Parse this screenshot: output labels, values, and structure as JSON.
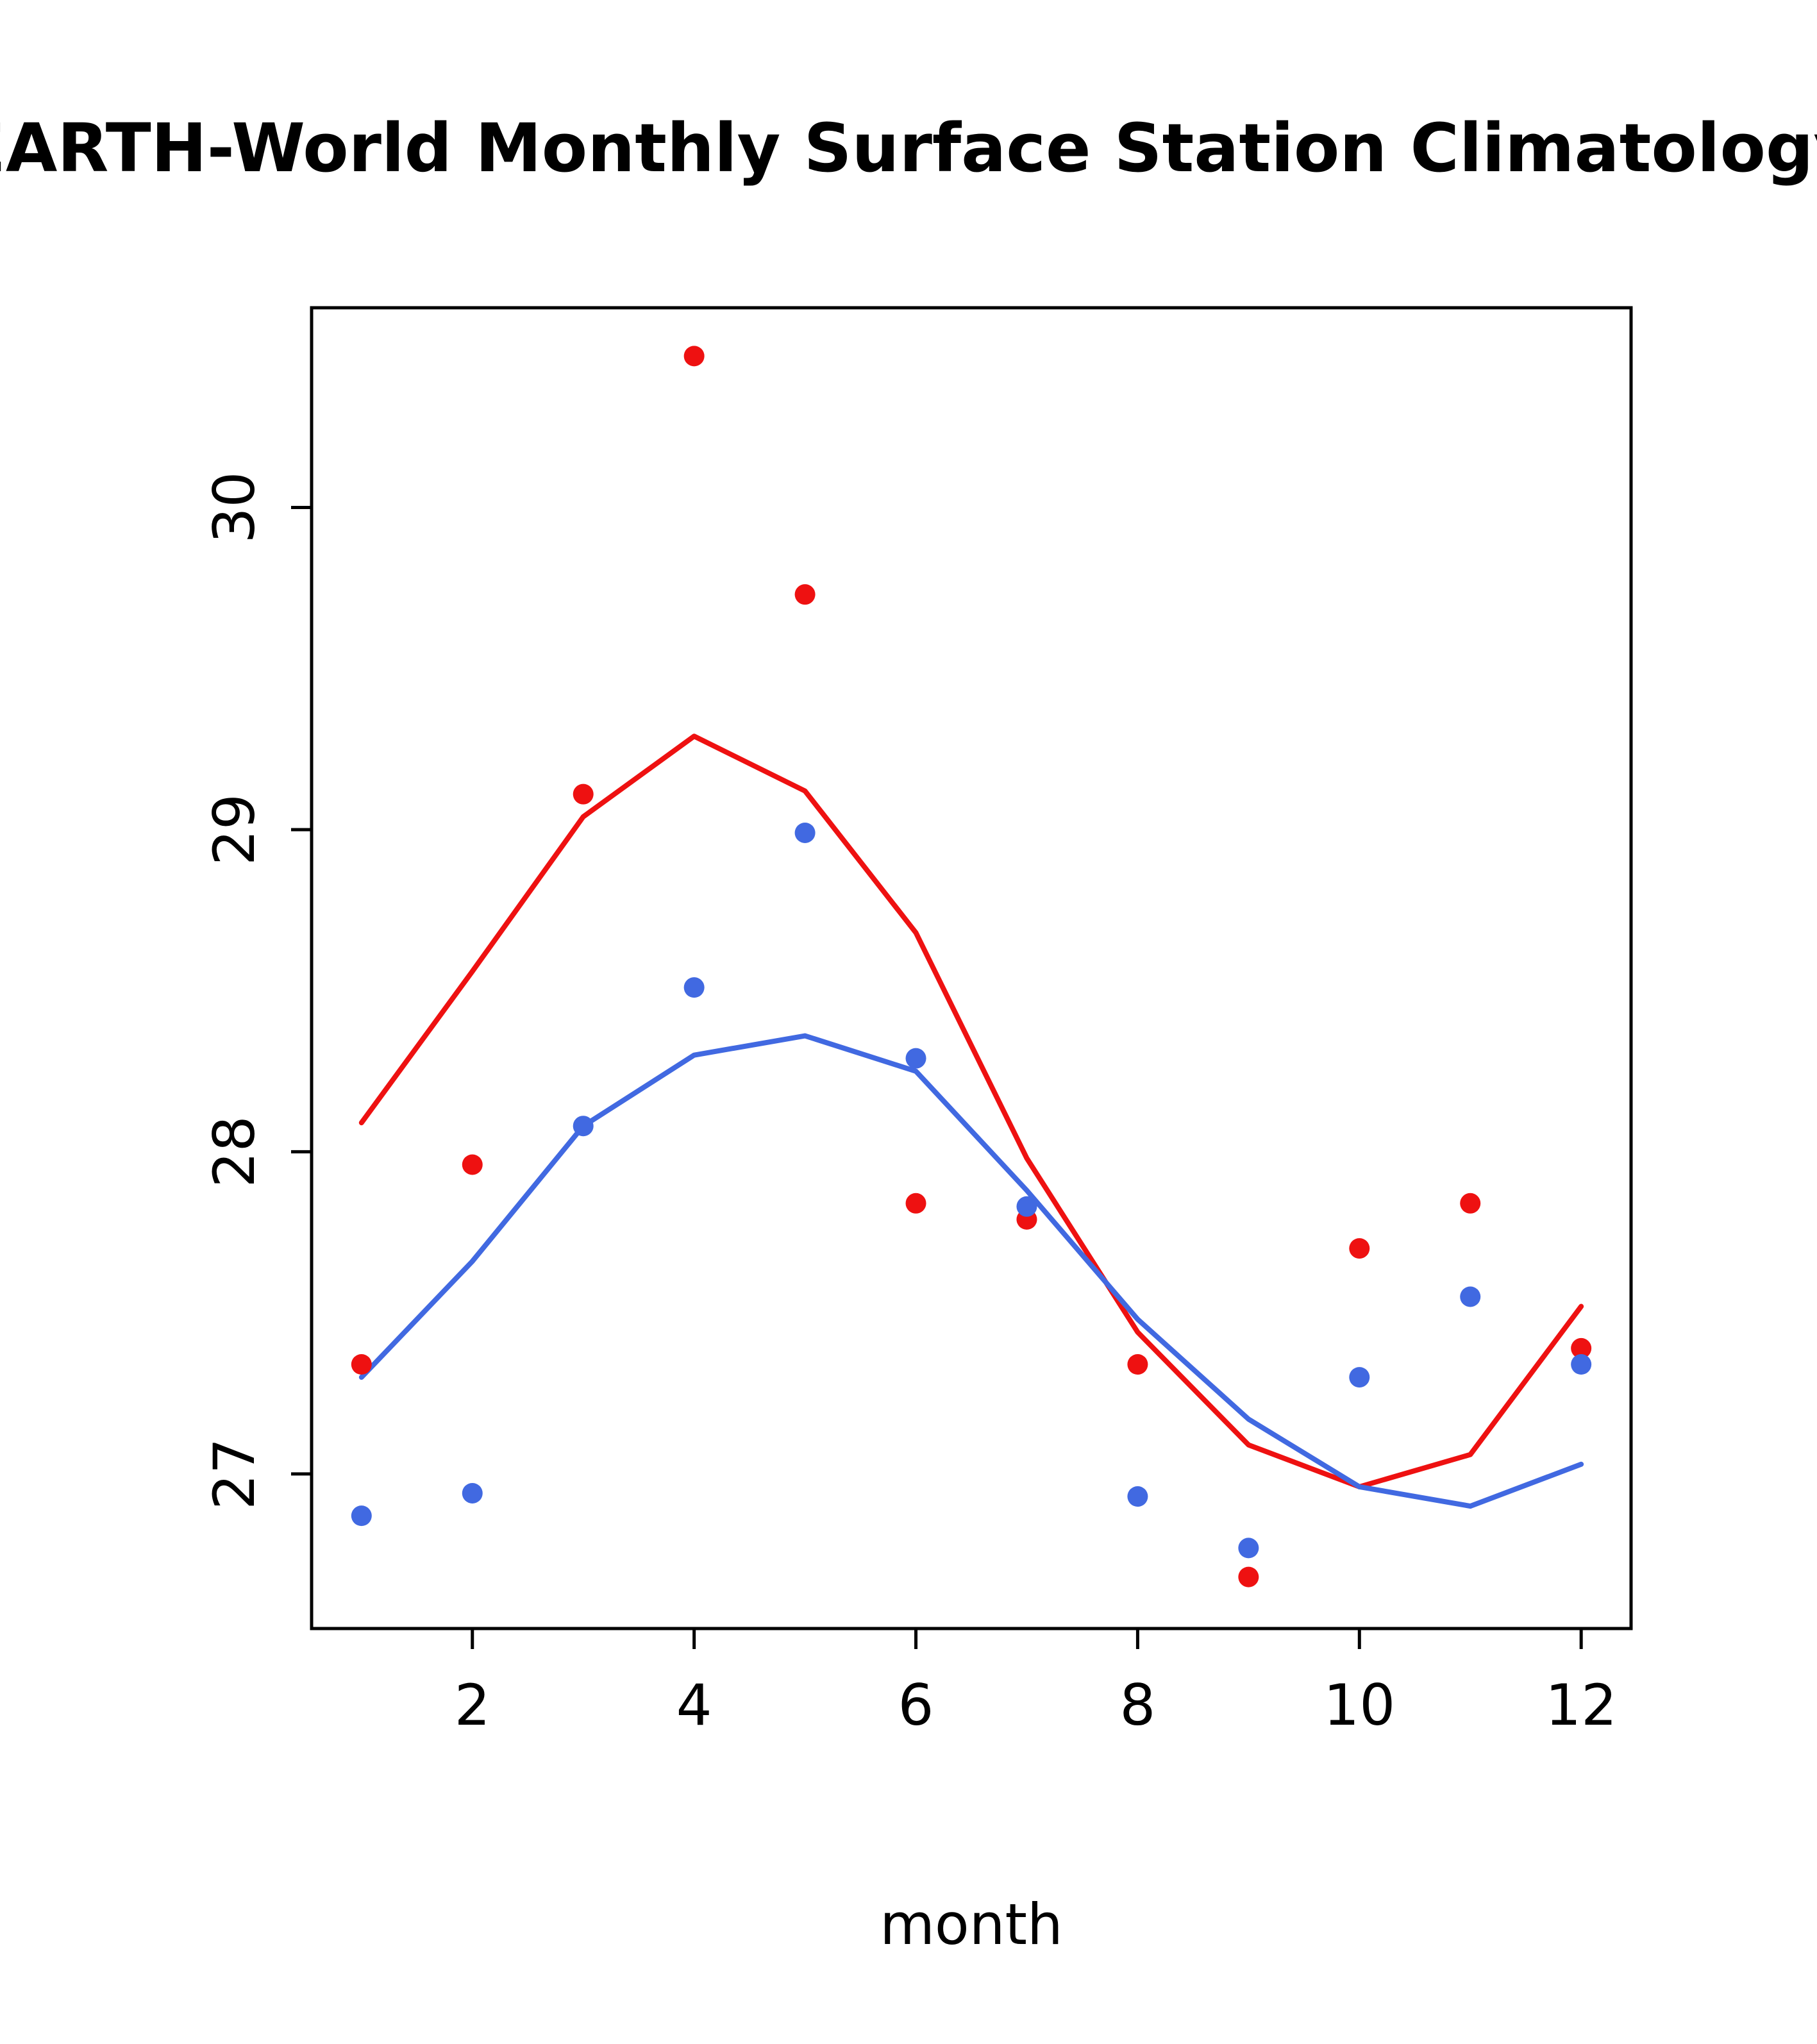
{
  "chart_data": {
    "type": "line",
    "title": "EARTH-World Monthly Surface Station Climatology",
    "xlabel": "month",
    "ylabel": "",
    "x": [
      1,
      2,
      3,
      4,
      5,
      6,
      7,
      8,
      9,
      10,
      11,
      12
    ],
    "xlim": [
      0.55,
      12.45
    ],
    "ylim": [
      26.52,
      30.62
    ],
    "x_ticks": [
      2,
      4,
      6,
      8,
      10,
      12
    ],
    "y_ticks": [
      27,
      28,
      29,
      30
    ],
    "grid": false,
    "legend": "none",
    "colors": {
      "red": "#ee1111",
      "blue": "#4169e1"
    },
    "series": [
      {
        "name": "red-points",
        "kind": "scatter",
        "color": "#ee1111",
        "values": [
          27.34,
          27.96,
          29.11,
          30.47,
          29.73,
          27.84,
          27.79,
          27.34,
          26.68,
          27.7,
          27.84,
          27.39
        ]
      },
      {
        "name": "blue-points",
        "kind": "scatter",
        "color": "#4169e1",
        "values": [
          26.87,
          26.94,
          28.08,
          28.51,
          28.99,
          28.29,
          27.83,
          26.93,
          26.77,
          27.3,
          27.55,
          27.34
        ]
      },
      {
        "name": "red-smooth-line",
        "kind": "line",
        "color": "#ee1111",
        "values": [
          28.09,
          28.56,
          29.04,
          29.29,
          29.12,
          28.68,
          27.98,
          27.44,
          27.09,
          26.96,
          27.06,
          27.52
        ]
      },
      {
        "name": "blue-smooth-line",
        "kind": "line",
        "color": "#4169e1",
        "values": [
          27.3,
          27.66,
          28.08,
          28.3,
          28.36,
          28.25,
          27.88,
          27.48,
          27.17,
          26.96,
          26.9,
          27.03
        ]
      }
    ]
  }
}
